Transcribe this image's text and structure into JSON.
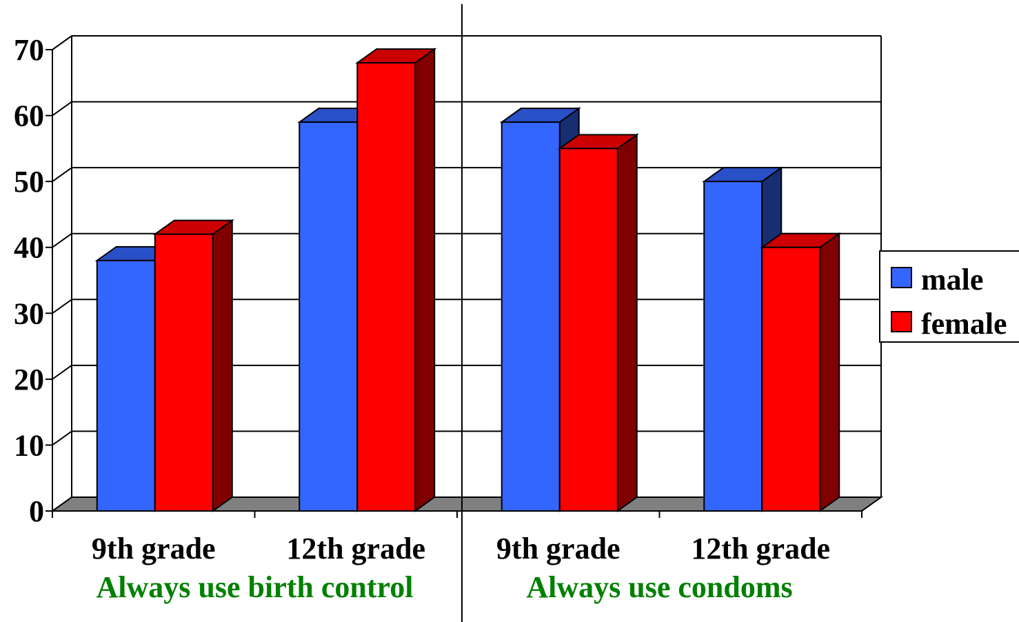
{
  "chart_data": {
    "type": "bar",
    "categories": [
      "9th grade",
      "12th grade",
      "9th grade",
      "12th grade"
    ],
    "groups": [
      {
        "label": "Always use birth control",
        "categories": [
          0,
          1
        ]
      },
      {
        "label": "Always use condoms",
        "categories": [
          2,
          3
        ]
      }
    ],
    "series": [
      {
        "name": "male",
        "values": [
          38,
          59,
          59,
          50
        ],
        "color": "#3366ff"
      },
      {
        "name": "female",
        "values": [
          42,
          68,
          55,
          40
        ],
        "color": "#ff0000"
      }
    ],
    "yticks": [
      0,
      10,
      20,
      30,
      40,
      50,
      60,
      70
    ],
    "ylim": [
      0,
      70
    ],
    "grid": true,
    "legend": "right",
    "group_label_color": "#008000",
    "floor_color": "#808080"
  }
}
